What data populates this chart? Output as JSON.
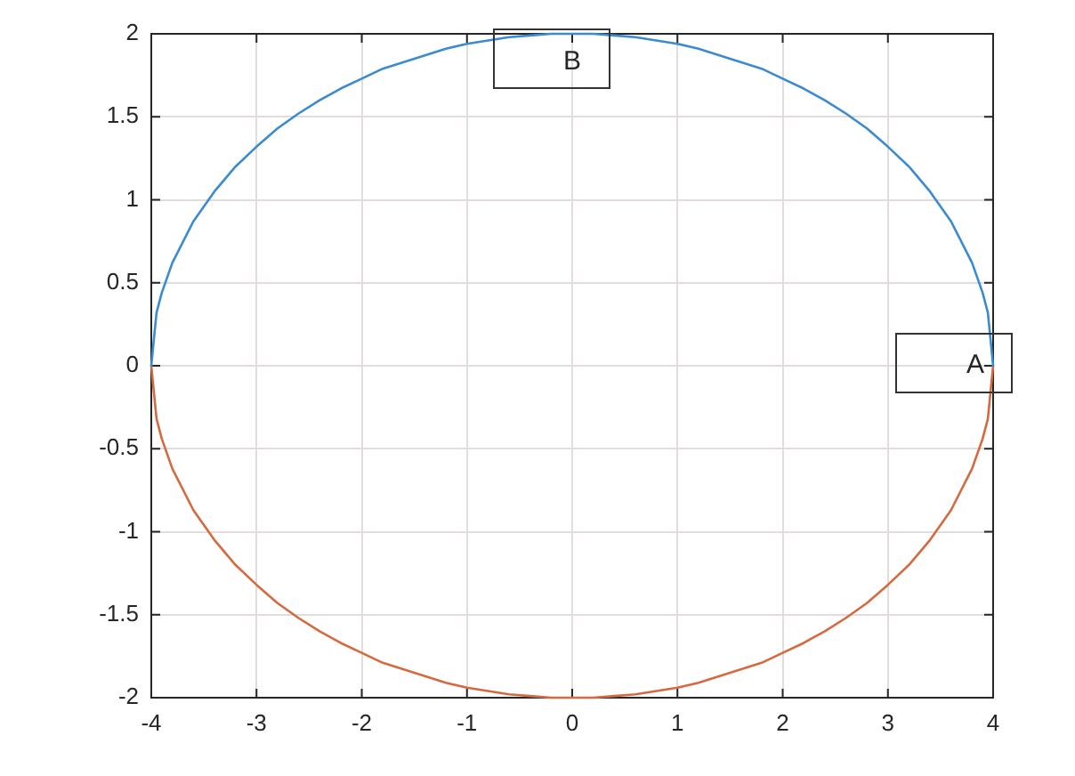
{
  "chart_data": {
    "type": "line",
    "x": [
      -4,
      -3.95,
      -3.9,
      -3.8,
      -3.6,
      -3.4,
      -3.2,
      -3,
      -2.8,
      -2.6,
      -2.4,
      -2.2,
      -2,
      -1.8,
      -1.6,
      -1.4,
      -1.2,
      -1,
      -0.8,
      -0.6,
      -0.4,
      -0.2,
      0,
      0.2,
      0.4,
      0.6,
      0.8,
      1,
      1.2,
      1.4,
      1.6,
      1.8,
      2,
      2.2,
      2.4,
      2.6,
      2.8,
      3,
      3.2,
      3.4,
      3.6,
      3.8,
      3.9,
      3.95,
      4
    ],
    "series": [
      {
        "color": "#3a8bcf",
        "values": [
          0,
          0.32,
          0.44,
          0.62,
          0.87,
          1.05,
          1.2,
          1.32,
          1.43,
          1.52,
          1.6,
          1.67,
          1.73,
          1.79,
          1.83,
          1.87,
          1.91,
          1.94,
          1.96,
          1.98,
          1.99,
          2,
          2,
          2,
          1.99,
          1.98,
          1.96,
          1.94,
          1.91,
          1.87,
          1.83,
          1.79,
          1.73,
          1.67,
          1.6,
          1.52,
          1.43,
          1.32,
          1.2,
          1.05,
          0.87,
          0.62,
          0.44,
          0.32,
          0
        ]
      },
      {
        "color": "#d56a40",
        "values": [
          0,
          -0.32,
          -0.44,
          -0.62,
          -0.87,
          -1.05,
          -1.2,
          -1.32,
          -1.43,
          -1.52,
          -1.6,
          -1.67,
          -1.73,
          -1.79,
          -1.83,
          -1.87,
          -1.91,
          -1.94,
          -1.96,
          -1.98,
          -1.99,
          -2,
          -2,
          -2,
          -1.99,
          -1.98,
          -1.96,
          -1.94,
          -1.91,
          -1.87,
          -1.83,
          -1.79,
          -1.73,
          -1.67,
          -1.6,
          -1.52,
          -1.43,
          -1.32,
          -1.2,
          -1.05,
          -0.87,
          -0.62,
          -0.44,
          -0.32,
          0
        ]
      }
    ],
    "xlim": [
      -4,
      4
    ],
    "ylim": [
      -2,
      2
    ],
    "xticks": [
      -4,
      -3,
      -2,
      -1,
      0,
      1,
      2,
      3,
      4
    ],
    "yticks": [
      -2,
      -1.5,
      -1,
      -0.5,
      0,
      0.5,
      1,
      1.5,
      2
    ],
    "grid": true,
    "marker": "none",
    "line_style": "solid",
    "annotations": [
      {
        "text": "B",
        "x": 0,
        "y": 2
      },
      {
        "text": "A",
        "x": 4,
        "y": 0
      }
    ]
  }
}
